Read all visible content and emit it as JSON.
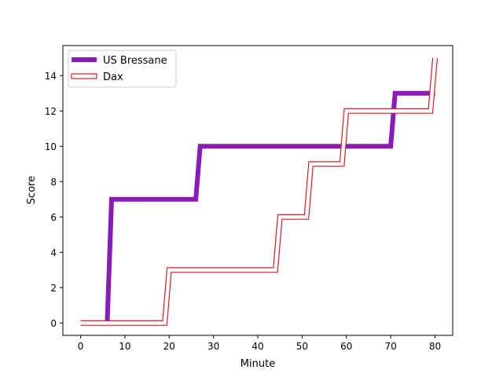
{
  "chart_data": {
    "type": "line",
    "title": "",
    "xlabel": "Minute",
    "ylabel": "Score",
    "xlim": [
      -4,
      84
    ],
    "ylim": [
      -0.7,
      15.7
    ],
    "xticks": [
      0,
      10,
      20,
      30,
      40,
      50,
      60,
      70,
      80
    ],
    "yticks": [
      0,
      2,
      4,
      6,
      8,
      10,
      12,
      14
    ],
    "grid": false,
    "legend_position": "top-left",
    "series": [
      {
        "name": "US Bressane",
        "style": "thick-solid",
        "color": "#8a1bb8",
        "x": [
          6,
          7,
          26,
          27,
          70,
          71,
          80
        ],
        "y": [
          0,
          7,
          7,
          10,
          10,
          13,
          13
        ]
      },
      {
        "name": "Dax",
        "style": "outlined-band",
        "color": "#e8161b",
        "x": [
          0,
          19,
          20,
          44,
          45,
          51,
          52,
          59,
          60,
          79,
          80
        ],
        "y": [
          0,
          0,
          3,
          3,
          6,
          6,
          9,
          9,
          12,
          12,
          15
        ]
      }
    ]
  }
}
